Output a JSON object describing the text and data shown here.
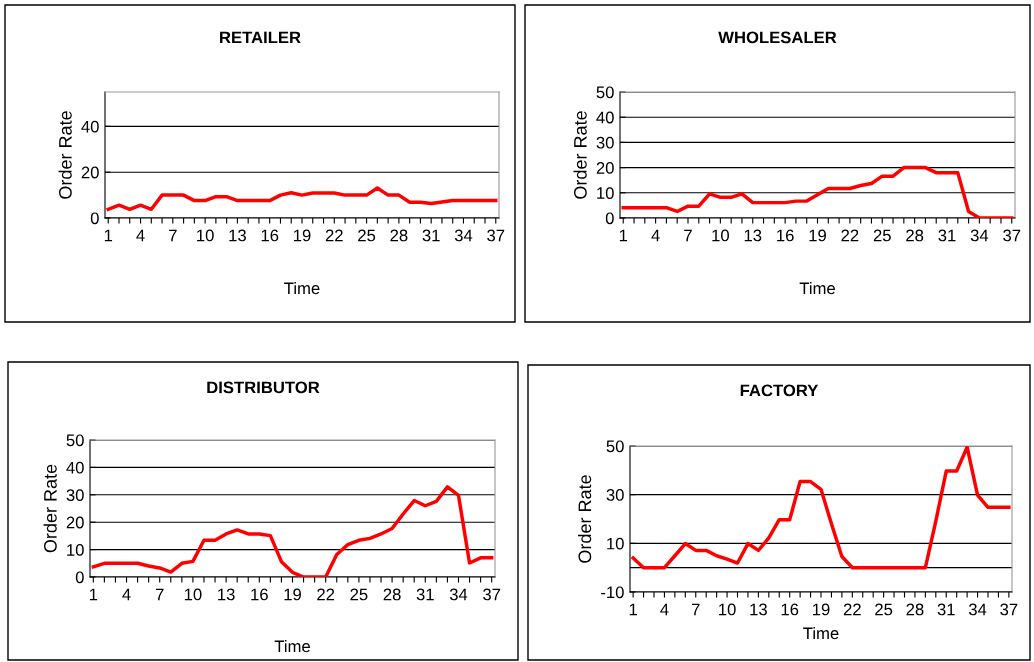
{
  "chart_data": [
    {
      "type": "line",
      "title": "RETAILER",
      "xlabel": "Time",
      "ylabel": "Order Rate",
      "categories": [
        "1",
        null,
        null,
        "4",
        null,
        null,
        "7",
        null,
        null,
        "10",
        null,
        null,
        "13",
        null,
        null,
        "16",
        null,
        null,
        "19",
        null,
        null,
        "22",
        null,
        null,
        "25",
        null,
        null,
        "28",
        null,
        null,
        "31",
        null,
        null,
        "34",
        null,
        null,
        "37"
      ],
      "series": [
        {
          "color": "#ff0000",
          "values": [
            3.8,
            5.6,
            3.8,
            5.6,
            3.8,
            10,
            10,
            10,
            7.6,
            7.6,
            9.3,
            9.3,
            7.6,
            7.6,
            7.6,
            7.6,
            10,
            11,
            10,
            10.9,
            10.9,
            10.9,
            10,
            10,
            10,
            13.1,
            10,
            10,
            6.9,
            6.9,
            6.3,
            7,
            7.6,
            7.6,
            7.6,
            7.6,
            7.6
          ]
        }
      ],
      "ylim": [
        0,
        55
      ],
      "yticks": [
        0,
        20,
        40
      ],
      "grid": "y",
      "legend": false,
      "marker": "none",
      "line_style": "solid"
    },
    {
      "type": "line",
      "title": "WHOLESALER",
      "xlabel": "Time",
      "ylabel": "Order Rate",
      "categories": [
        "1",
        null,
        null,
        "4",
        null,
        null,
        "7",
        null,
        null,
        "10",
        null,
        null,
        "13",
        null,
        null,
        "16",
        null,
        null,
        "19",
        null,
        null,
        "22",
        null,
        null,
        "25",
        null,
        null,
        "28",
        null,
        null,
        "31",
        null,
        null,
        "34",
        null,
        null,
        "37"
      ],
      "series": [
        {
          "color": "#ff0000",
          "values": [
            4.1,
            4.1,
            4.1,
            4.1,
            4.1,
            2.6,
            4.7,
            4.7,
            9.6,
            8.2,
            8.2,
            9.6,
            6.1,
            6.1,
            6.1,
            6.1,
            6.7,
            6.7,
            9.2,
            11.7,
            11.7,
            11.7,
            12.9,
            13.7,
            16.6,
            16.6,
            20,
            20,
            20,
            18,
            18,
            18,
            2.6,
            0,
            0,
            0,
            0
          ]
        }
      ],
      "ylim": [
        0,
        50
      ],
      "yticks": [
        0,
        10,
        20,
        30,
        40,
        50
      ],
      "grid": "y",
      "legend": false,
      "marker": "none",
      "line_style": "solid"
    },
    {
      "type": "line",
      "title": "DISTRIBUTOR",
      "xlabel": "Time",
      "ylabel": "Order Rate",
      "categories": [
        "1",
        null,
        null,
        "4",
        null,
        null,
        "7",
        null,
        null,
        "10",
        null,
        null,
        "13",
        null,
        null,
        "16",
        null,
        null,
        "19",
        null,
        null,
        "22",
        null,
        null,
        "25",
        null,
        null,
        "28",
        null,
        null,
        "31",
        null,
        null,
        "34",
        null,
        null,
        "37"
      ],
      "series": [
        {
          "color": "#ff0000",
          "values": [
            3.7,
            5,
            5,
            5,
            5,
            4,
            3.3,
            1.8,
            5,
            5.7,
            13.4,
            13.4,
            15.7,
            17.2,
            15.7,
            15.7,
            15.1,
            5.6,
            1.7,
            0,
            0,
            0,
            8.2,
            11.8,
            13.4,
            14.1,
            15.7,
            17.7,
            23,
            27.9,
            26,
            27.6,
            32.9,
            29.8,
            5.1,
            7,
            7
          ]
        }
      ],
      "ylim": [
        0,
        50
      ],
      "yticks": [
        0,
        10,
        20,
        30,
        40,
        50
      ],
      "grid": "y",
      "legend": false,
      "marker": "none",
      "line_style": "solid"
    },
    {
      "type": "line",
      "title": "FACTORY",
      "xlabel": "Time",
      "ylabel": "Order Rate",
      "categories": [
        "1",
        null,
        null,
        "4",
        null,
        null,
        "7",
        null,
        null,
        "10",
        null,
        null,
        "13",
        null,
        null,
        "16",
        null,
        null,
        "19",
        null,
        null,
        "22",
        null,
        null,
        "25",
        null,
        null,
        "28",
        null,
        null,
        "31",
        null,
        null,
        "34",
        null,
        null,
        "37"
      ],
      "series": [
        {
          "color": "#ff0000",
          "values": [
            4,
            0,
            0,
            0,
            4.9,
            9.9,
            7.1,
            7.1,
            4.9,
            3.5,
            1.9,
            9.9,
            7.1,
            12.2,
            19.7,
            19.7,
            35.4,
            35.4,
            32.2,
            18,
            4.6,
            0,
            0,
            0,
            0,
            0,
            0,
            0,
            0,
            19.1,
            39.7,
            39.7,
            49.5,
            29.8,
            24.8,
            24.8,
            24.8
          ]
        }
      ],
      "ylim": [
        -10,
        50
      ],
      "yticks": [
        -10,
        10,
        30,
        50
      ],
      "grid": "y",
      "legend": false,
      "marker": "none",
      "line_style": "solid",
      "ref_lines": [
        {
          "axis": "y",
          "value": 0,
          "color": "#000000"
        }
      ]
    }
  ]
}
